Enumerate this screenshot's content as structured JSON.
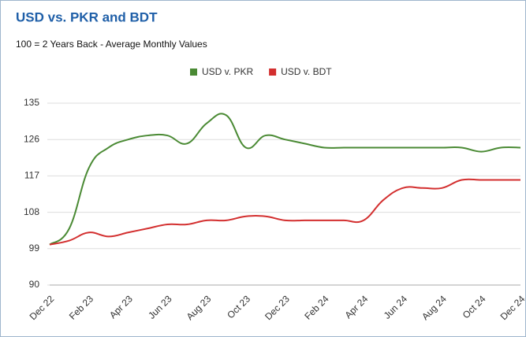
{
  "chart_data": {
    "type": "line",
    "title": "USD vs. PKR and BDT",
    "subtitle": "100 = 2 Years Back - Average Monthly Values",
    "categories": [
      "Dec 22",
      null,
      "Feb 23",
      null,
      "Apr 23",
      null,
      "Jun 23",
      null,
      "Aug 23",
      null,
      "Oct 23",
      null,
      "Dec 23",
      null,
      "Feb 24",
      null,
      "Apr 24",
      null,
      "Jun 24",
      null,
      "Aug 24",
      null,
      "Oct 24",
      null,
      "Dec 24"
    ],
    "series": [
      {
        "name": "USD v. PKR",
        "color": "#4a8a34",
        "values": [
          100,
          104,
          119,
          124,
          126,
          127,
          127,
          125,
          130,
          132,
          124,
          127,
          126,
          125,
          124,
          124,
          124,
          124,
          124,
          124,
          124,
          124,
          123,
          124,
          124
        ]
      },
      {
        "name": "USD v. BDT",
        "color": "#d32f2f",
        "values": [
          100,
          101,
          103,
          102,
          103,
          104,
          105,
          105,
          106,
          106,
          107,
          107,
          106,
          106,
          106,
          106,
          106,
          111,
          114,
          114,
          114,
          116,
          116,
          116,
          116
        ]
      }
    ],
    "ylim": [
      90,
      135
    ],
    "yticks": [
      90,
      99,
      108,
      117,
      126,
      135
    ],
    "grid": true,
    "legend": "top"
  }
}
